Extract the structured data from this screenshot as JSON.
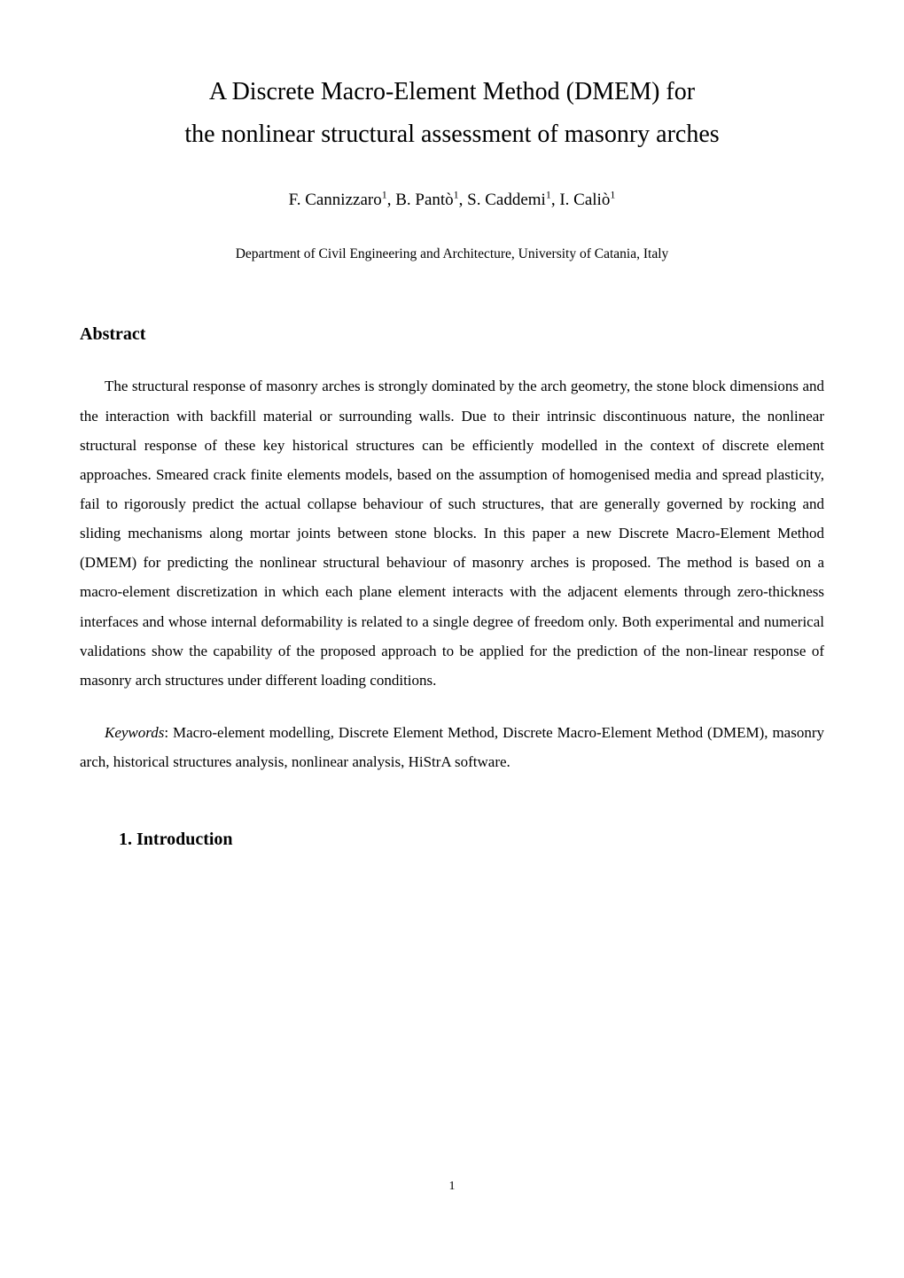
{
  "title_line1": "A Discrete Macro-Element Method (DMEM) for",
  "title_line2": "the nonlinear structural assessment of masonry arches",
  "authors": {
    "a1": "F. Cannizzaro",
    "sup1": "1",
    "sep1": ", ",
    "a2": "B. Pantò",
    "sup2": "1",
    "sep2": ", ",
    "a3": "S. Caddemi",
    "sup3": "1",
    "sep3": ", ",
    "a4": "I. Caliò",
    "sup4": "1"
  },
  "affiliation": "Department of Civil Engineering and Architecture, University of Catania, Italy",
  "abstract_heading": "Abstract",
  "abstract_body": "The structural response of masonry arches is strongly dominated by the arch geometry, the stone block dimensions and the interaction with backfill material or surrounding walls. Due to their intrinsic discontinuous nature, the nonlinear structural response of these key historical structures can be efficiently modelled in the context of discrete element approaches. Smeared crack finite elements models, based on the assumption of homogenised media and spread plasticity, fail to rigorously predict the actual collapse behaviour of such structures, that are generally governed by rocking and sliding mechanisms along mortar joints between stone blocks. In this paper a new Discrete Macro-Element Method (DMEM) for predicting the nonlinear structural behaviour of masonry arches is proposed. The method is based on a macro-element discretization in which each plane element interacts with the adjacent elements through zero-thickness interfaces and whose internal deformability is related to a single degree of freedom only. Both experimental and numerical validations show the capability of the proposed approach to be applied for the prediction of the non-linear response of masonry arch structures under different loading conditions.",
  "keywords_label": "Keywords",
  "keywords_text": ": Macro-element modelling, Discrete Element Method, Discrete Macro-Element Method (DMEM), masonry arch, historical structures analysis, nonlinear analysis, HiStrA software.",
  "section_number": "1.",
  "section_title": "Introduction",
  "page_number": "1",
  "colors": {
    "background": "#ffffff",
    "text": "#000000"
  },
  "typography": {
    "body_font": "Century Schoolbook",
    "title_fontsize": 28,
    "authors_fontsize": 19,
    "affiliation_fontsize": 15.5,
    "heading_fontsize": 20,
    "body_fontsize": 17,
    "page_number_fontsize": 14,
    "line_height": 1.95
  }
}
